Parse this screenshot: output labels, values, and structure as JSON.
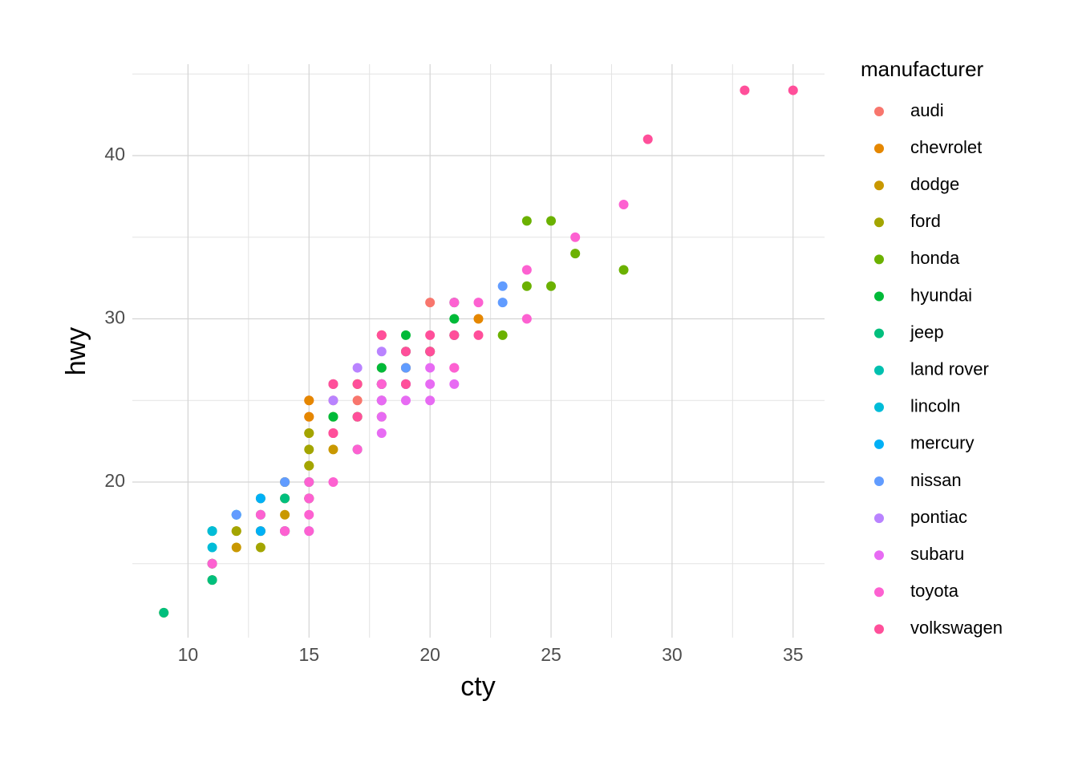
{
  "chart_data": {
    "type": "scatter",
    "x_label": "cty",
    "y_label": "hwy",
    "legend_title": "manufacturer",
    "xlim": [
      7.7,
      36.3
    ],
    "ylim": [
      10.47,
      45.6
    ],
    "xticks": [
      10,
      15,
      20,
      25,
      30,
      35
    ],
    "yticks": [
      20,
      30,
      40
    ],
    "xminor": [
      12.5,
      17.5,
      22.5,
      27.5,
      32.5
    ],
    "yminor": [
      15,
      25,
      35,
      45
    ],
    "grid": true,
    "legend_position": "right",
    "series": [
      {
        "name": "audi",
        "color": "#F8766D",
        "x": [
          18,
          21,
          20,
          16,
          18,
          18,
          16,
          20,
          19,
          15,
          17,
          15,
          16
        ],
        "y": [
          29,
          29,
          31,
          26,
          26,
          27,
          25,
          28,
          27,
          25,
          25,
          24,
          23
        ]
      },
      {
        "name": "chevrolet",
        "color": "#E58700",
        "x": [
          14,
          11,
          13,
          12,
          16,
          15,
          15,
          15,
          14,
          11,
          19,
          22,
          18,
          18,
          17
        ],
        "y": [
          20,
          15,
          17,
          17,
          26,
          23,
          25,
          24,
          19,
          14,
          27,
          30,
          26,
          29,
          26
        ]
      },
      {
        "name": "dodge",
        "color": "#C99800",
        "x": [
          18,
          17,
          16,
          15,
          15,
          14,
          13,
          9,
          11,
          12,
          14
        ],
        "y": [
          24,
          24,
          22,
          19,
          21,
          17,
          17,
          12,
          15,
          16,
          18
        ]
      },
      {
        "name": "ford",
        "color": "#A3A500",
        "x": [
          11,
          12,
          14,
          13,
          15,
          13,
          18,
          18,
          17,
          16,
          15,
          15,
          15,
          14
        ],
        "y": [
          17,
          17,
          17,
          19,
          19,
          16,
          26,
          25,
          26,
          24,
          21,
          22,
          23,
          20
        ]
      },
      {
        "name": "honda",
        "color": "#6BB100",
        "x": [
          28,
          24,
          25,
          23,
          26,
          25,
          24,
          21
        ],
        "y": [
          33,
          32,
          32,
          29,
          34,
          36,
          36,
          29
        ]
      },
      {
        "name": "hyundai",
        "color": "#00BA38",
        "x": [
          18,
          18,
          21,
          21,
          19,
          19,
          19,
          20,
          17,
          16
        ],
        "y": [
          26,
          27,
          30,
          31,
          28,
          26,
          29,
          28,
          24,
          24
        ]
      },
      {
        "name": "jeep",
        "color": "#00BF7D",
        "x": [
          17,
          15,
          15,
          14,
          9,
          14,
          13,
          11
        ],
        "y": [
          22,
          19,
          20,
          17,
          12,
          19,
          18,
          14
        ]
      },
      {
        "name": "land rover",
        "color": "#00C0AF",
        "x": [
          11,
          11,
          12
        ],
        "y": [
          15,
          17,
          18
        ]
      },
      {
        "name": "lincoln",
        "color": "#00BCD8",
        "x": [
          11,
          11,
          12
        ],
        "y": [
          17,
          16,
          18
        ]
      },
      {
        "name": "mercury",
        "color": "#00B0F6",
        "x": [
          14,
          13,
          13
        ],
        "y": [
          17,
          19,
          17
        ]
      },
      {
        "name": "nissan",
        "color": "#619CFF",
        "x": [
          21,
          19,
          23,
          23,
          19,
          18,
          14,
          15,
          12
        ],
        "y": [
          29,
          27,
          31,
          32,
          26,
          26,
          20,
          17,
          18
        ]
      },
      {
        "name": "pontiac",
        "color": "#B983FF",
        "x": [
          18,
          16,
          17,
          18,
          16,
          18
        ],
        "y": [
          26,
          26,
          27,
          25,
          25,
          28
        ]
      },
      {
        "name": "subaru",
        "color": "#E76BF3",
        "x": [
          18,
          18,
          20,
          19,
          20,
          18,
          21,
          19,
          21,
          20
        ],
        "y": [
          25,
          24,
          27,
          25,
          26,
          23,
          26,
          26,
          27,
          25
        ]
      },
      {
        "name": "toyota",
        "color": "#FD61D1",
        "x": [
          15,
          16,
          15,
          15,
          14,
          13,
          21,
          21,
          22,
          18,
          28,
          26,
          24,
          24,
          15,
          17,
          11,
          14,
          15,
          16
        ],
        "y": [
          20,
          20,
          19,
          17,
          17,
          18,
          27,
          31,
          31,
          26,
          37,
          35,
          33,
          30,
          18,
          22,
          15,
          17,
          19,
          23
        ]
      },
      {
        "name": "volkswagen",
        "color": "#FF4F9A",
        "x": [
          35,
          33,
          29,
          21,
          19,
          22,
          17,
          18,
          20,
          20,
          16,
          17,
          16,
          19
        ],
        "y": [
          44,
          44,
          41,
          29,
          28,
          29,
          24,
          29,
          28,
          29,
          26,
          26,
          23,
          26
        ]
      }
    ]
  }
}
